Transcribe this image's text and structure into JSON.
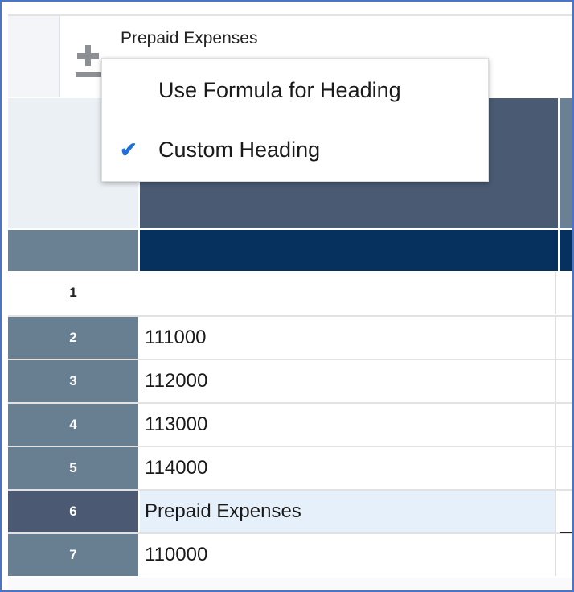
{
  "toolbar": {
    "title": "Prepaid Expenses",
    "icon": "plus-minus-icon"
  },
  "menu": {
    "items": [
      {
        "label": "Use Formula for Heading",
        "checked": false
      },
      {
        "label": "Custom Heading",
        "checked": true
      }
    ],
    "check_glyph": "✔"
  },
  "grid": {
    "rows": [
      {
        "num": "1",
        "value": ""
      },
      {
        "num": "2",
        "value": "111000"
      },
      {
        "num": "3",
        "value": "112000"
      },
      {
        "num": "4",
        "value": "113000"
      },
      {
        "num": "5",
        "value": "114000"
      },
      {
        "num": "6",
        "value": "Prepaid Expenses",
        "selected": true
      },
      {
        "num": "7",
        "value": "110000"
      }
    ]
  },
  "colors": {
    "header": "#4a5a72",
    "subheader": "#06305e",
    "row_header": "#687f92",
    "selected_row": "#e6f0fa",
    "accent": "#1e6fd9"
  }
}
